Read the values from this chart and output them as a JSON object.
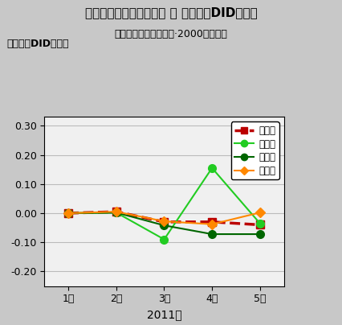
{
  "title": "東日本大震災前後の家計 財 消費支出DID変化率",
  "subtitle": "（総務省家計調査月報·2000年実質）",
  "ylabel": "対例年比DID変化率",
  "xlabel": "2011年",
  "months": [
    "1月",
    "2月",
    "3月",
    "4月",
    "5月"
  ],
  "x": [
    1,
    2,
    3,
    4,
    5
  ],
  "ylim": [
    -0.25,
    0.33
  ],
  "yticks": [
    -0.2,
    -0.1,
    0.0,
    0.1,
    0.2,
    0.3
  ],
  "series_order": [
    "全国",
    "東北",
    "関東",
    "他地域"
  ],
  "series": {
    "全国": {
      "values": [
        0.0,
        0.005,
        -0.03,
        -0.03,
        -0.04
      ],
      "color": "#bb0000",
      "linestyle": "--",
      "linewidth": 2.5,
      "marker": "s",
      "markersize": 7,
      "markerfacecolor": "#bb0000",
      "markeredgecolor": "#bb0000"
    },
    "東北": {
      "values": [
        0.0,
        0.002,
        -0.09,
        0.155,
        -0.035
      ],
      "color": "#22cc22",
      "linestyle": "-",
      "linewidth": 1.5,
      "marker": "o",
      "markersize": 7,
      "markerfacecolor": "#22cc22",
      "markeredgecolor": "#22cc22"
    },
    "関東": {
      "values": [
        0.0,
        0.002,
        -0.042,
        -0.072,
        -0.072
      ],
      "color": "#006600",
      "linestyle": "-",
      "linewidth": 1.5,
      "marker": "o",
      "markersize": 7,
      "markerfacecolor": "#006600",
      "markeredgecolor": "#006600"
    },
    "他地域": {
      "values": [
        0.0,
        0.005,
        -0.028,
        -0.038,
        0.002
      ],
      "color": "#ff8800",
      "linestyle": "-",
      "linewidth": 1.5,
      "marker": "D",
      "markersize": 6,
      "markerfacecolor": "#ff8800",
      "markeredgecolor": "#ff8800"
    }
  },
  "legend_labels": [
    "全　国",
    "東　北",
    "関　東",
    "他地域"
  ],
  "fig_facecolor": "#c8c8c8",
  "plot_facecolor": "#f0f0f0",
  "grid_color": "#bbbbbb",
  "title_fontsize": 11,
  "subtitle_fontsize": 9,
  "ylabel_fontsize": 9,
  "xlabel_fontsize": 10,
  "tick_fontsize": 9
}
